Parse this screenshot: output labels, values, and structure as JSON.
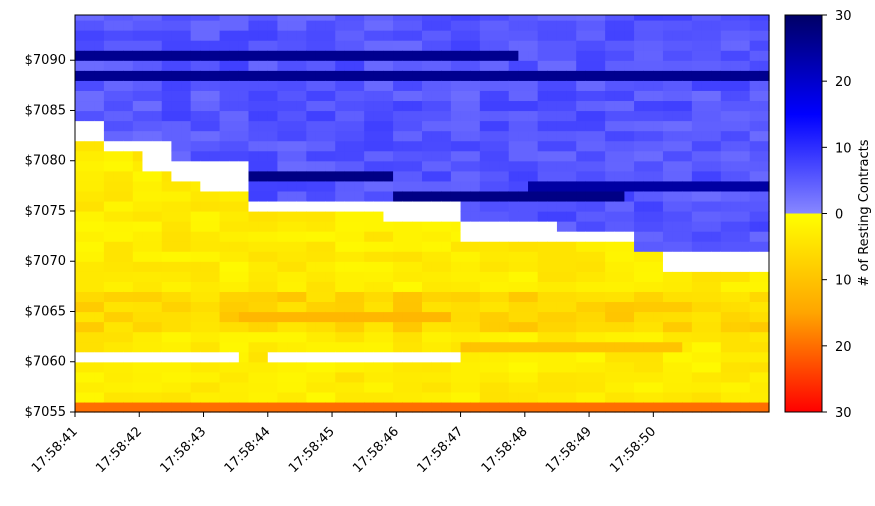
{
  "chart_data": {
    "type": "heatmap",
    "title": "",
    "xlabel": "",
    "ylabel": "",
    "x_ticks": [
      "17:58:41",
      "17:58:42",
      "17:58:43",
      "17:58:44",
      "17:58:45",
      "17:58:46",
      "17:58:47",
      "17:58:48",
      "17:58:49",
      "17:58:50"
    ],
    "x_range_seconds": [
      0,
      10.8
    ],
    "y_ticks": [
      "$7090",
      "$7085",
      "$7080",
      "$7075",
      "$7070",
      "$7065",
      "$7060",
      "$7055"
    ],
    "y_tick_values": [
      7090,
      7085,
      7080,
      7075,
      7070,
      7065,
      7060,
      7055
    ],
    "ylim": [
      7055,
      7094.5
    ],
    "price_step": 1,
    "colorbar": {
      "label": "# of Resting Contracts",
      "ask_ticks": [
        "30",
        "20",
        "10",
        "0"
      ],
      "bid_ticks": [
        "10",
        "20",
        "30"
      ],
      "ask_colors": [
        "#8888ff",
        "#0000ff",
        "#000066"
      ],
      "bid_colors": [
        "#ffff00",
        "#ffa500",
        "#ff0000"
      ],
      "max_contracts": 30
    },
    "best_bid_segments": [
      {
        "t0": 0,
        "t1": 0.45,
        "bid": 7081
      },
      {
        "t0": 0.45,
        "t1": 1.0,
        "bid": 7080
      },
      {
        "t0": 1.0,
        "t1": 1.45,
        "bid": 7078
      },
      {
        "t0": 1.45,
        "t1": 1.9,
        "bid": 7077
      },
      {
        "t0": 1.9,
        "t1": 2.65,
        "bid": 7076
      },
      {
        "t0": 2.65,
        "t1": 3.5,
        "bid": 7074
      },
      {
        "t0": 3.5,
        "t1": 4.8,
        "bid": 7074
      },
      {
        "t0": 4.8,
        "t1": 5.95,
        "bid": 7073
      },
      {
        "t0": 5.95,
        "t1": 7.5,
        "bid": 7071
      },
      {
        "t0": 7.5,
        "t1": 8.7,
        "bid": 7071
      },
      {
        "t0": 8.7,
        "t1": 9.1,
        "bid": 7070
      },
      {
        "t0": 9.1,
        "t1": 9.6,
        "bid": 7068
      },
      {
        "t0": 9.6,
        "t1": 10.8,
        "bid": 7068
      }
    ],
    "best_ask_segments": [
      {
        "t0": 0,
        "t1": 0.45,
        "ask": 7084
      },
      {
        "t0": 0.45,
        "t1": 1.45,
        "ask": 7082
      },
      {
        "t0": 1.45,
        "t1": 2.65,
        "ask": 7080
      },
      {
        "t0": 2.65,
        "t1": 4.8,
        "ask": 7076
      },
      {
        "t0": 4.8,
        "t1": 5.95,
        "ask": 7076
      },
      {
        "t0": 5.95,
        "t1": 7.5,
        "ask": 7074
      },
      {
        "t0": 7.5,
        "t1": 8.7,
        "ask": 7073
      },
      {
        "t0": 8.7,
        "t1": 10.8,
        "ask": 7071
      }
    ],
    "heavy_bands": [
      {
        "side": "ask",
        "price": 7090,
        "t0": 0,
        "t1": 6.9,
        "contracts": 26
      },
      {
        "side": "ask",
        "price": 7088,
        "t0": 0,
        "t1": 10.8,
        "contracts": 26
      },
      {
        "side": "ask",
        "price": 7078,
        "t0": 1.9,
        "t1": 5.0,
        "contracts": 27
      },
      {
        "side": "ask",
        "price": 7076,
        "t0": 5.0,
        "t1": 8.5,
        "contracts": 27
      },
      {
        "side": "ask",
        "price": 7077,
        "t0": 7.0,
        "t1": 10.8,
        "contracts": 24
      },
      {
        "side": "bid",
        "price": 7064,
        "t0": 2.5,
        "t1": 5.8,
        "contracts": 12
      },
      {
        "side": "bid",
        "price": 7061,
        "t0": 6.0,
        "t1": 9.5,
        "contracts": 10
      },
      {
        "side": "bid",
        "price": 7055,
        "t0": 0,
        "t1": 10.8,
        "contracts": 20
      }
    ],
    "empty_bands": [
      {
        "price": 7060,
        "t0": 0,
        "t1": 2.5
      },
      {
        "price": 7060,
        "t0": 3.0,
        "t1": 5.95
      }
    ]
  }
}
